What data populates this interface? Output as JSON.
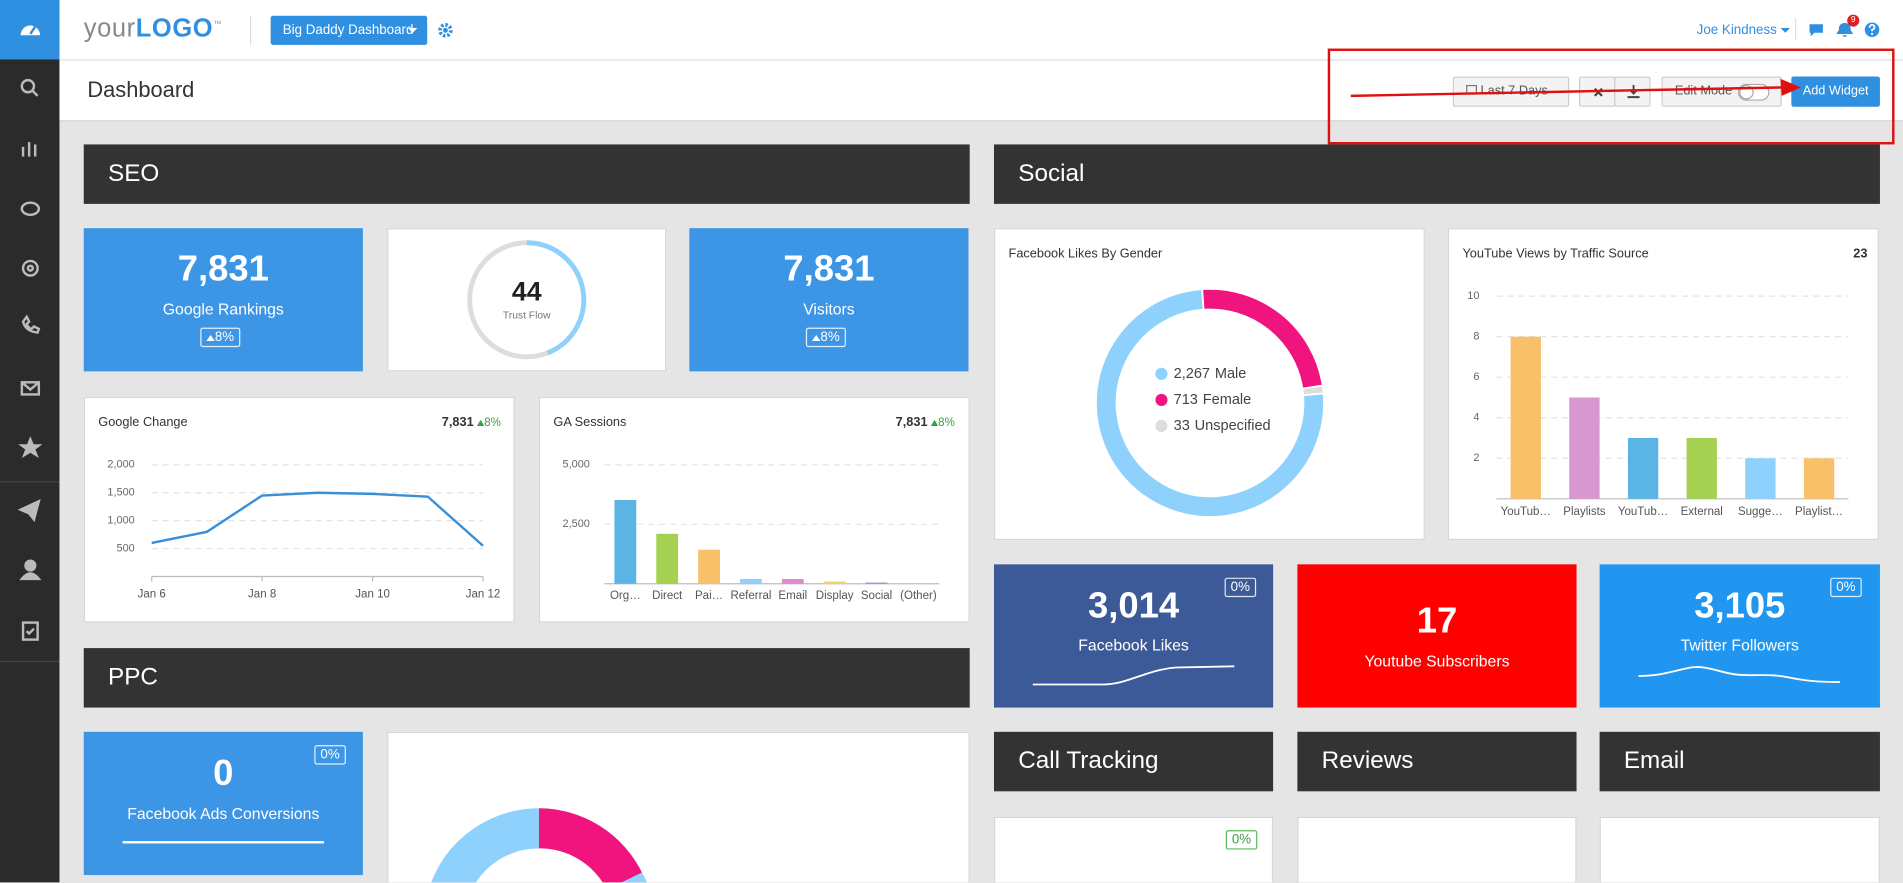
{
  "header": {
    "logo_your": "your",
    "logo_brand": "LOGO",
    "logo_tm": "™",
    "dashboard": "Big Daddy Dashboard",
    "user": "Joe Kindness",
    "notifications": "9"
  },
  "toolbar": {
    "title": "Dashboard",
    "date_range": "Last 7 Days",
    "edit_mode": "Edit Mode",
    "add_widget": "Add Widget"
  },
  "sections": {
    "seo": "SEO",
    "social": "Social",
    "ppc": "PPC",
    "call_tracking": "Call Tracking",
    "reviews": "Reviews",
    "email": "Email"
  },
  "widgets": {
    "google_rankings": {
      "value": "7,831",
      "label": "Google Rankings",
      "change": "8%"
    },
    "trust_flow": {
      "value": 44,
      "label": "Trust Flow"
    },
    "visitors": {
      "value": "7,831",
      "label": "Visitors",
      "change": "8%"
    },
    "facebook_likes": {
      "value": "3,014",
      "label": "Facebook Likes",
      "change": "0%"
    },
    "youtube_subscribers": {
      "value": "17",
      "label": "Youtube Subscribers"
    },
    "twitter_followers": {
      "value": "3,105",
      "label": "Twitter Followers",
      "change": "0%"
    },
    "facebook_ads_conversions": {
      "value": "0",
      "label": "Facebook Ads Conversions",
      "change": "0%"
    },
    "call_tracking": {
      "change": "0%"
    }
  },
  "chart_data": [
    {
      "type": "line",
      "title": "Google Change",
      "total": "7,831",
      "change": "8%",
      "x": [
        "Jan 6",
        null,
        "Jan 8",
        null,
        "Jan 10",
        null,
        "Jan 12"
      ],
      "values": [
        600,
        800,
        1450,
        1500,
        1480,
        1430,
        550
      ],
      "color": "#3a8fd6",
      "ylim": [
        0,
        2000
      ],
      "yticks": [
        500,
        {
          "value": 1000,
          "label": "1,000"
        },
        {
          "value": 1500,
          "label": "1,500"
        },
        {
          "value": 2000,
          "label": "2,000"
        }
      ],
      "grid": true
    },
    {
      "type": "bar",
      "title": "GA Sessions",
      "total": "7,831",
      "change": "8%",
      "categories": [
        "Org…",
        "Direct",
        "Pai…",
        "Referral",
        "Email",
        "Display",
        "Social",
        "(Other)"
      ],
      "values": [
        3520,
        2100,
        1430,
        200,
        200,
        100,
        50,
        20
      ],
      "colors": [
        "#5ab4e4",
        "#a5d152",
        "#f9c06a",
        "#8ed1fc",
        "#e08bd0",
        "#f5d76e",
        "#9b8fd6",
        "#cccccc"
      ],
      "ylim": [
        0,
        5000
      ],
      "yticks": [
        {
          "value": 2500,
          "label": "2,500"
        },
        {
          "value": 5000,
          "label": "5,000"
        }
      ],
      "grid": true
    },
    {
      "type": "pie",
      "title": "Facebook Likes By Gender",
      "donut": true,
      "categories": [
        "Male",
        "Female",
        "Unspecified"
      ],
      "values": [
        2267,
        713,
        33
      ],
      "value_labels": [
        "2,267",
        "713",
        "33"
      ],
      "colors": [
        "#8ed1fc",
        "#f0147f",
        "#dddddd"
      ]
    },
    {
      "type": "bar",
      "title": "YouTube Views by Traffic Source",
      "total": "23",
      "categories": [
        "YouTub…",
        "Playlists",
        "YouTub…",
        "External",
        "Sugge…",
        "Playlist…"
      ],
      "values": [
        8,
        5,
        3,
        3,
        2,
        2
      ],
      "colors": [
        "#f9c06a",
        "#d897d0",
        "#5ab4e4",
        "#a5d152",
        "#8ed1fc",
        "#f9c06a"
      ],
      "ylim": [
        0,
        10
      ],
      "yticks": [
        2,
        4,
        6,
        8,
        10
      ],
      "grid": true
    }
  ]
}
